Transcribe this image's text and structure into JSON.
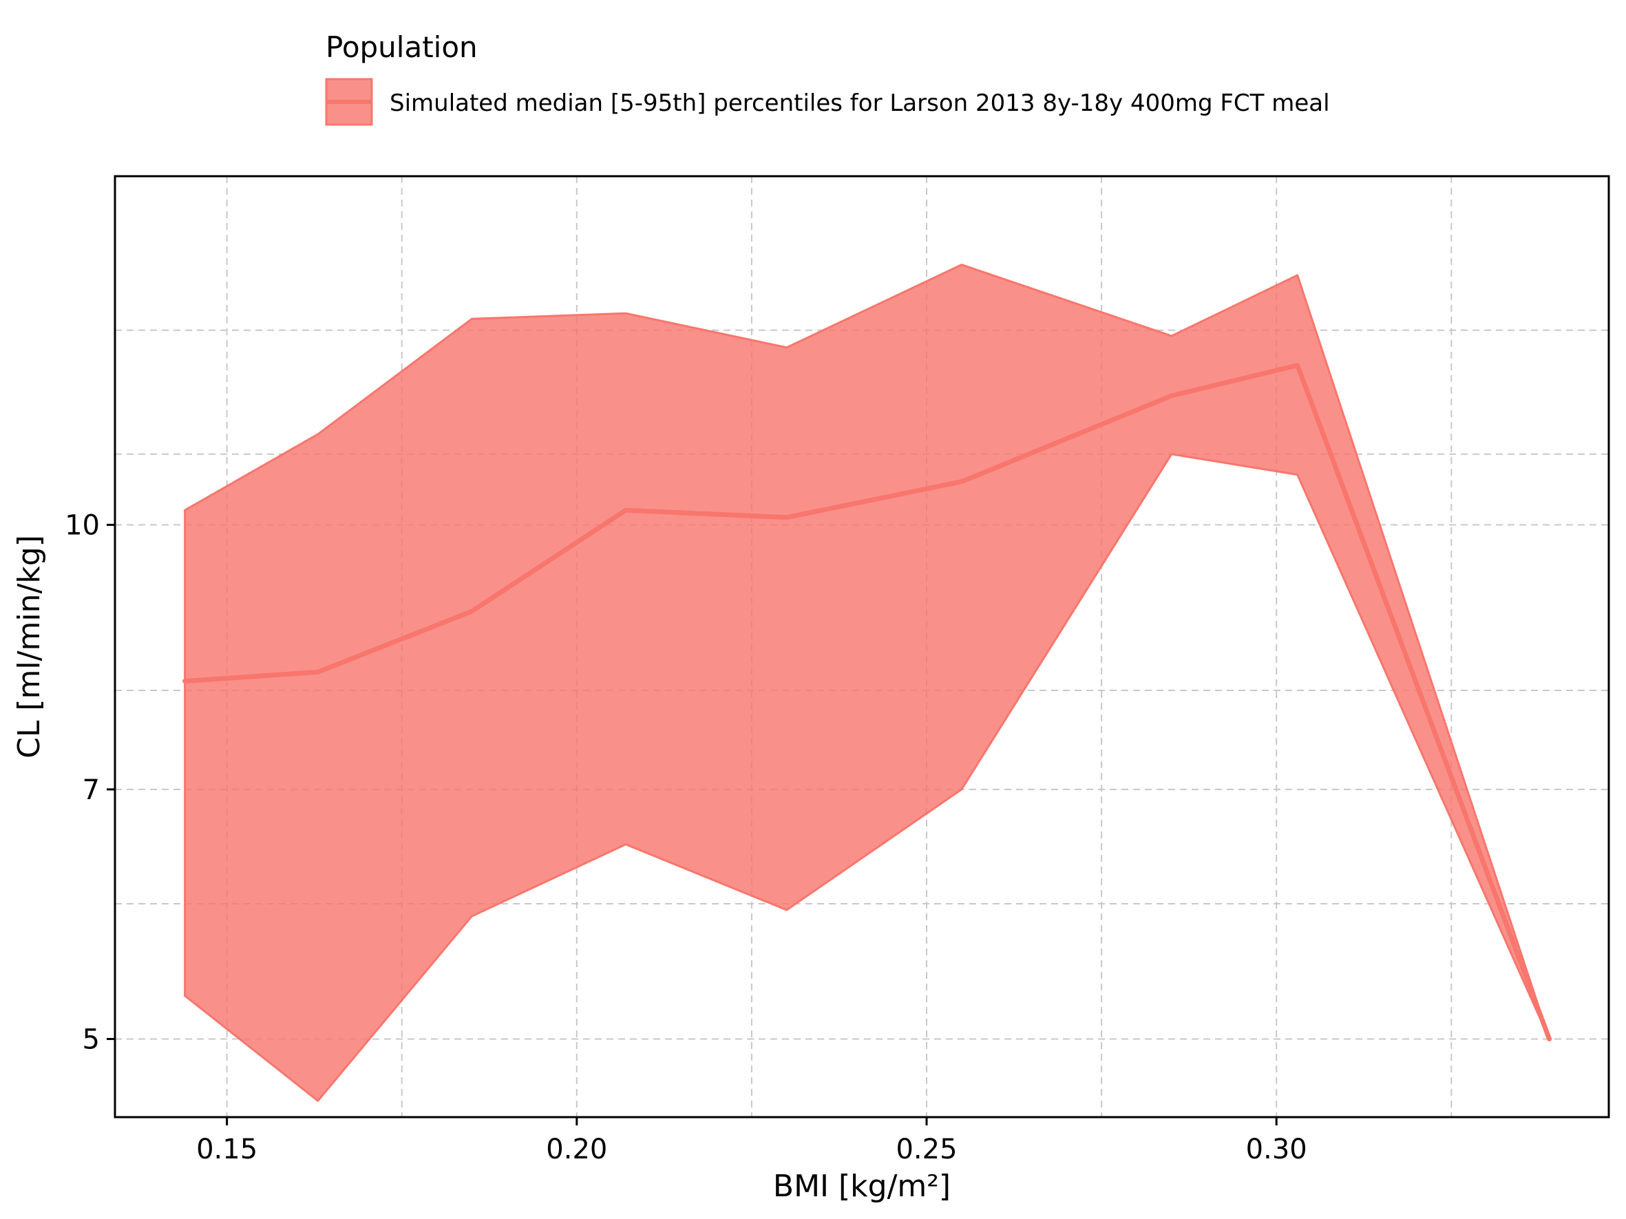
{
  "chart_data": {
    "type": "area",
    "xlabel": "BMI [kg/m²]",
    "ylabel": "CL [ml/min/kg]",
    "xlim": [
      0.134,
      0.3475
    ],
    "ylim": [
      4.5,
      16.0
    ],
    "y_scale": "log",
    "grid": true,
    "legend_position": "top",
    "legend_title": "Population",
    "x_ticks": [
      0.15,
      0.2,
      0.25,
      0.3
    ],
    "x_tick_labels": [
      "0.15",
      "0.20",
      "0.25",
      "0.30"
    ],
    "y_ticks": [
      5,
      7,
      10
    ],
    "y_tick_labels": [
      "5",
      "7",
      "10"
    ],
    "y_minor_gridlines": [
      6,
      8,
      11,
      13
    ],
    "x_minor_gridlines": [
      0.175,
      0.225,
      0.275,
      0.325
    ],
    "series": [
      {
        "name": "Simulated median [5-95th] percentiles for Larson 2013 8y-18y 400mg FCT meal",
        "color": "#F8766D",
        "x": [
          0.144,
          0.163,
          0.185,
          0.207,
          0.23,
          0.255,
          0.285,
          0.303,
          0.339
        ],
        "median": [
          8.1,
          8.2,
          8.9,
          10.2,
          10.1,
          10.6,
          11.9,
          12.4,
          5.0
        ],
        "p5": [
          5.3,
          4.6,
          5.9,
          6.5,
          5.95,
          7.0,
          11.0,
          10.7,
          5.0
        ],
        "p95": [
          10.2,
          11.3,
          13.2,
          13.3,
          12.7,
          14.2,
          12.9,
          14.0,
          5.0
        ]
      }
    ]
  }
}
